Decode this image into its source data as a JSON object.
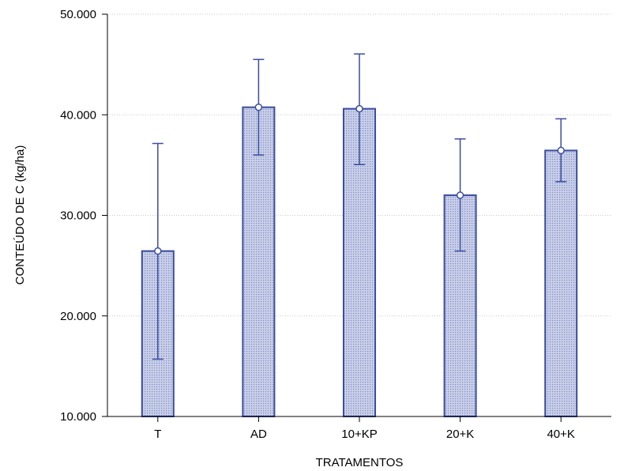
{
  "chart_data": {
    "type": "bar",
    "xlabel": "TRATAMENTOS",
    "ylabel": "CONTEÚDO DE C (kg/ha)",
    "categories": [
      "T",
      "AD",
      "10+KP",
      "20+K",
      "40+K"
    ],
    "values": [
      26450,
      40750,
      40600,
      32000,
      36450
    ],
    "error_low": [
      15700,
      36000,
      35050,
      26450,
      33350
    ],
    "error_high": [
      37150,
      45500,
      46050,
      37600,
      39600
    ],
    "ylim": [
      10000,
      50000
    ],
    "yticks": [
      10000,
      20000,
      30000,
      40000,
      50000
    ],
    "ytick_labels": [
      "10.000",
      "20.000",
      "30.000",
      "40.000",
      "50.000"
    ],
    "grid": true,
    "colors": {
      "bar_fill": "#b4bddf",
      "bar_edge": "#3b4da0",
      "error": "#3b4da0",
      "grid": "#c8c8c8"
    }
  }
}
